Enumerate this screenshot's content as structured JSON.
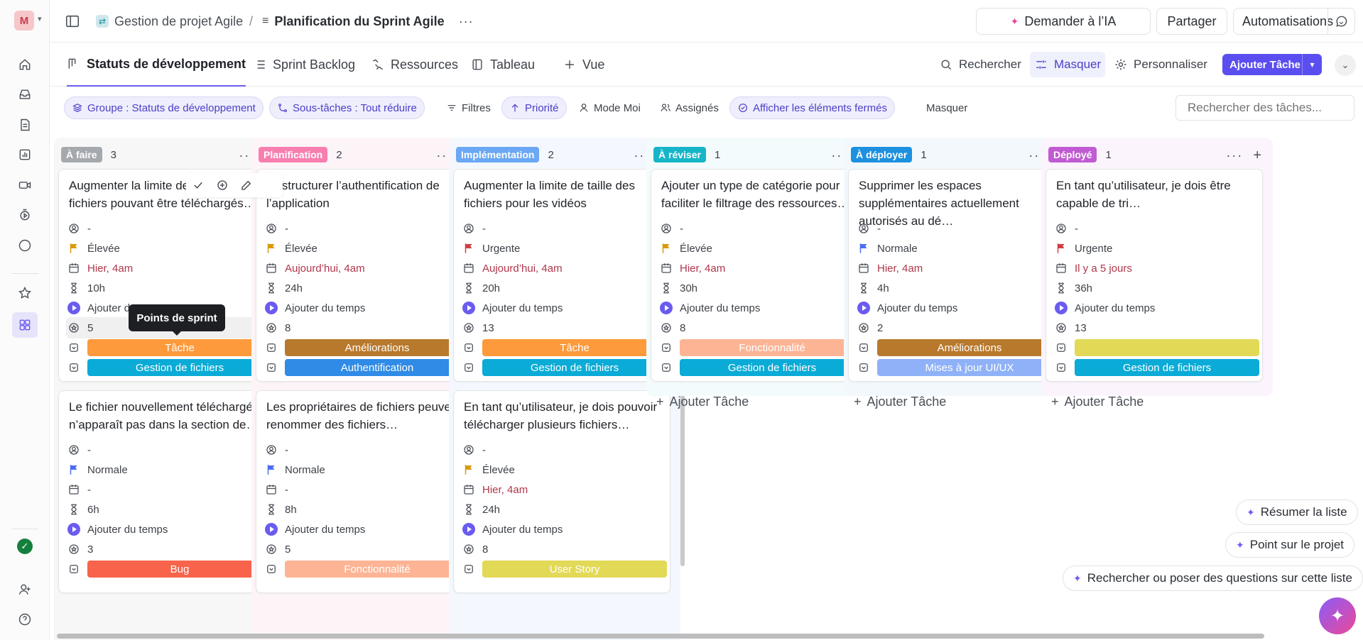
{
  "workspace": {
    "initial": "M"
  },
  "breadcrumb": {
    "space": "Gestion de projet Agile",
    "separator": "/",
    "page": "Planification du Sprint Agile"
  },
  "topbar": {
    "ask_ai": "Demander à l’IA",
    "share": "Partager",
    "automations": "Automatisations"
  },
  "views": {
    "tabs": [
      {
        "label": "Statuts de développement",
        "icon": "board-icon"
      },
      {
        "label": "Sprint Backlog",
        "icon": "list-icon"
      },
      {
        "label": "Ressources",
        "icon": "resources-icon"
      },
      {
        "label": "Tableau",
        "icon": "table-icon"
      },
      {
        "label": "Vue",
        "icon": "plus-icon"
      }
    ],
    "search": "Rechercher",
    "hide": "Masquer",
    "customize": "Personnaliser",
    "add_task": "Ajouter Tâche"
  },
  "filters": {
    "group": "Groupe : Statuts de développement",
    "subtasks": "Sous-tâches : Tout réduire",
    "filters": "Filtres",
    "priority": "Priorité",
    "me_mode": "Mode Moi",
    "assignees": "Assignés",
    "show_closed": "Afficher les éléments fermés",
    "hide": "Masquer",
    "search_placeholder": "Rechercher des tâches..."
  },
  "columns": [
    {
      "name": "À faire",
      "count": "3",
      "color": "#a5a8ad",
      "bg": "#f7f7f7",
      "cards": [
        {
          "title": "Augmenter la limite de taille des fichiers pouvant être téléchargés…",
          "assignee": "-",
          "priority": "Élevée",
          "priority_color": "#d99a06",
          "date": "Hier, 4am",
          "estimate": "10h",
          "time": "Ajouter du temps",
          "points": "5",
          "tag1": "Tâche",
          "tag1_color": "#fd9a3c",
          "tag2": "Gestion de fichiers",
          "tag2_color": "#0aabd6"
        },
        {
          "title": "Le fichier nouvellement téléchargé n’apparaît pas dans la section de…",
          "assignee": "-",
          "priority": "Normale",
          "priority_color": "#4e6cf1",
          "date": "-",
          "estimate": "6h",
          "time": "Ajouter du temps",
          "points": "3",
          "tag1": "Bug",
          "tag1_color": "#f7634b"
        }
      ]
    },
    {
      "name": "Planification",
      "count": "2",
      "color": "#f87eb0",
      "bg": "#fdf4f8",
      "cards": [
        {
          "title": "Restructurer l’authentification de l’application",
          "assignee": "-",
          "priority": "Élevée",
          "priority_color": "#d99a06",
          "date": "Aujourd’hui, 4am",
          "estimate": "24h",
          "time": "Ajouter du temps",
          "points": "8",
          "tag1": "Améliorations",
          "tag1_color": "#b8792d",
          "tag2": "Authentification",
          "tag2_color": "#2f8be6"
        },
        {
          "title": "Les propriétaires de fichiers peuvent renommer des fichiers…",
          "assignee": "-",
          "priority": "Normale",
          "priority_color": "#4e6cf1",
          "date": "-",
          "estimate": "8h",
          "time": "Ajouter du temps",
          "points": "5",
          "tag1": "Fonctionnalité",
          "tag1_color": "#fdb495"
        }
      ]
    },
    {
      "name": "Implémentation",
      "count": "2",
      "color": "#6aa7f4",
      "bg": "#f4f8fe",
      "cards": [
        {
          "title": "Augmenter la limite de taille des fichiers pour les vidéos",
          "assignee": "-",
          "priority": "Urgente",
          "priority_color": "#d33d44",
          "date": "Aujourd’hui, 4am",
          "estimate": "20h",
          "time": "Ajouter du temps",
          "points": "13",
          "tag1": "Tâche",
          "tag1_color": "#fd9a3c",
          "tag2": "Gestion de fichiers",
          "tag2_color": "#0aabd6"
        },
        {
          "title": "En tant qu’utilisateur, je dois pouvoir télécharger plusieurs fichiers…",
          "assignee": "-",
          "priority": "Élevée",
          "priority_color": "#d99a06",
          "date": "Hier, 4am",
          "estimate": "24h",
          "time": "Ajouter du temps",
          "points": "8",
          "tag1": "User Story",
          "tag1_color": "#e2d957"
        }
      ]
    },
    {
      "name": "À réviser",
      "count": "1",
      "color": "#16b6c8",
      "bg": "#f3fbfc",
      "cards": [
        {
          "title": "Ajouter un type de catégorie pour faciliter le filtrage des ressources…",
          "assignee": "-",
          "priority": "Élevée",
          "priority_color": "#d99a06",
          "date": "Hier, 4am",
          "estimate": "30h",
          "time": "Ajouter du temps",
          "points": "8",
          "tag1": "Fonctionnalité",
          "tag1_color": "#fdb495",
          "tag2": "Gestion de fichiers",
          "tag2_color": "#0aabd6"
        }
      ],
      "add_task": "Ajouter Tâche"
    },
    {
      "name": "À déployer",
      "count": "1",
      "color": "#1d90e0",
      "bg": "#f3f8fd",
      "cards": [
        {
          "title": "Supprimer les espaces supplémentaires actuellement autorisés au dé…",
          "assignee": "-",
          "priority": "Normale",
          "priority_color": "#4e6cf1",
          "date": "Hier, 4am",
          "estimate": "4h",
          "time": "Ajouter du temps",
          "points": "2",
          "tag1": "Améliorations",
          "tag1_color": "#b8792d",
          "tag2": "Mises à jour UI/UX",
          "tag2_color": "#8fb1f7"
        }
      ],
      "add_task": "Ajouter Tâche"
    },
    {
      "name": "Déployé",
      "count": "1",
      "color": "#c15bd3",
      "bg": "#fbf4fc",
      "cards": [
        {
          "title": "En tant qu’utilisateur, je dois être capable de tri…",
          "assignee": "-",
          "priority": "Urgente",
          "priority_color": "#d33d44",
          "date": "Il y a 5 jours",
          "estimate": "36h",
          "time": "Ajouter du temps",
          "points": "13",
          "tag1": "",
          "tag1_color": "#e2d957",
          "tag2": "Gestion de fichiers",
          "tag2_color": "#0aabd6"
        }
      ],
      "add_task": "Ajouter Tâche"
    }
  ],
  "tooltip": "Points de sprint",
  "ai_actions": {
    "summarize": "Résumer la liste",
    "project_update": "Point sur le projet",
    "ask": "Rechercher ou poser des questions sur cette liste"
  }
}
